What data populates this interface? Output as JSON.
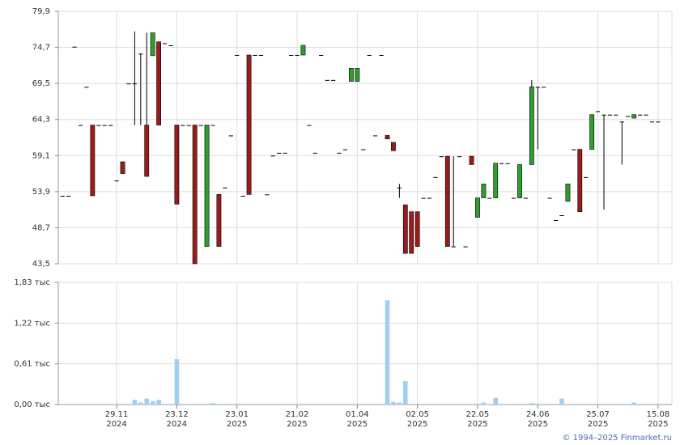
{
  "chart_data": [
    {
      "type": "candlestick",
      "up_color": "#2e9e2e",
      "down_color": "#9b1b1b",
      "flat_color": "#000000",
      "xlim": [
        -0.7,
        101.3
      ],
      "xticks": [
        {
          "value": 9,
          "label": "29.11\n2024"
        },
        {
          "value": 19,
          "label": "23.12\n2024"
        },
        {
          "value": 29,
          "label": "23.01\n2025"
        },
        {
          "value": 39,
          "label": "21.02\n2025"
        },
        {
          "value": 49,
          "label": "01.04\n2025"
        },
        {
          "value": 59,
          "label": "02.05\n2025"
        },
        {
          "value": 69,
          "label": "22.05\n2025"
        },
        {
          "value": 79,
          "label": "24.06\n2025"
        },
        {
          "value": 89,
          "label": "25.07\n2025"
        },
        {
          "value": 99,
          "label": "15.08\n2025"
        }
      ],
      "ylim": [
        43.5,
        79.9
      ],
      "yticks": [
        {
          "value": 43.5,
          "label": "43,5"
        },
        {
          "value": 48.7,
          "label": "48,7"
        },
        {
          "value": 53.9,
          "label": "53,9"
        },
        {
          "value": 59.1,
          "label": "59,1"
        },
        {
          "value": 64.3,
          "label": "64,3"
        },
        {
          "value": 69.5,
          "label": "69,5"
        },
        {
          "value": 74.7,
          "label": "74,7"
        },
        {
          "value": 79.9,
          "label": "79,9"
        }
      ],
      "grid": true,
      "candles": [
        [
          53.3,
          53.3,
          53.3,
          53.3
        ],
        [
          53.3,
          53.3,
          53.3,
          53.3
        ],
        [
          74.8,
          74.8,
          74.8,
          74.8
        ],
        [
          63.5,
          63.5,
          63.5,
          63.5
        ],
        [
          69.0,
          69.0,
          69.0,
          69.0
        ],
        [
          63.5,
          63.5,
          53.3,
          53.3
        ],
        [
          63.5,
          63.5,
          63.5,
          63.5
        ],
        [
          63.5,
          63.5,
          63.5,
          63.5
        ],
        [
          63.5,
          63.5,
          63.5,
          63.5
        ],
        [
          55.5,
          55.5,
          55.5,
          55.5
        ],
        [
          58.2,
          58.2,
          56.5,
          56.5
        ],
        [
          69.5,
          69.5,
          69.5,
          69.5
        ],
        [
          69.5,
          77.0,
          63.5,
          69.5
        ],
        [
          73.8,
          73.8,
          63.5,
          73.8
        ],
        [
          63.5,
          76.8,
          56.1,
          56.1
        ],
        [
          73.5,
          76.8,
          73.5,
          76.8
        ],
        [
          75.5,
          75.5,
          63.5,
          63.5
        ],
        [
          75.3,
          75.3,
          75.3,
          75.3
        ],
        [
          75.0,
          75.0,
          75.0,
          75.0
        ],
        [
          63.5,
          63.5,
          52.1,
          52.1
        ],
        [
          63.5,
          63.5,
          63.5,
          63.5
        ],
        [
          63.5,
          63.5,
          63.5,
          63.5
        ],
        [
          63.5,
          63.5,
          43.5,
          43.5
        ],
        [
          63.5,
          63.5,
          63.5,
          63.5
        ],
        [
          46.0,
          63.5,
          46.0,
          63.5
        ],
        [
          63.5,
          63.5,
          63.5,
          63.5
        ],
        [
          53.5,
          53.5,
          46.0,
          46.0
        ],
        [
          54.5,
          54.5,
          54.5,
          54.5
        ],
        [
          62.0,
          62.0,
          62.0,
          62.0
        ],
        [
          73.6,
          73.6,
          73.6,
          73.6
        ],
        [
          53.3,
          53.3,
          53.3,
          53.3
        ],
        [
          73.6,
          73.6,
          53.5,
          53.5
        ],
        [
          73.6,
          73.6,
          73.6,
          73.6
        ],
        [
          73.6,
          73.6,
          73.6,
          73.6
        ],
        [
          53.5,
          53.5,
          53.5,
          53.5
        ],
        [
          59.1,
          59.1,
          59.1,
          59.1
        ],
        [
          59.5,
          59.5,
          59.5,
          59.5
        ],
        [
          59.5,
          59.5,
          59.5,
          59.5
        ],
        [
          73.6,
          73.6,
          73.6,
          73.6
        ],
        [
          73.6,
          73.6,
          73.6,
          73.6
        ],
        [
          73.6,
          75.0,
          73.6,
          75.0
        ],
        [
          63.5,
          63.5,
          63.5,
          63.5
        ],
        [
          59.5,
          59.5,
          59.5,
          59.5
        ],
        [
          73.6,
          73.6,
          73.6,
          73.6
        ],
        [
          70.0,
          70.0,
          70.0,
          70.0
        ],
        [
          70.0,
          70.0,
          70.0,
          70.0
        ],
        [
          59.5,
          59.5,
          59.5,
          59.5
        ],
        [
          60.0,
          60.0,
          60.0,
          60.0
        ],
        [
          69.8,
          71.7,
          69.8,
          71.7
        ],
        [
          69.8,
          71.7,
          69.8,
          71.7
        ],
        [
          60.0,
          60.0,
          60.0,
          60.0
        ],
        [
          73.6,
          73.6,
          73.6,
          73.6
        ],
        [
          62.0,
          62.0,
          62.0,
          62.0
        ],
        [
          73.6,
          73.6,
          73.6,
          73.6
        ],
        [
          62.0,
          62.0,
          61.5,
          61.5
        ],
        [
          61.0,
          61.0,
          59.8,
          59.8
        ],
        [
          54.5,
          55.0,
          53.0,
          54.5
        ],
        [
          52.0,
          52.0,
          45.0,
          45.0
        ],
        [
          51.0,
          51.0,
          45.0,
          45.0
        ],
        [
          51.0,
          51.0,
          46.0,
          46.0
        ],
        [
          53.0,
          53.0,
          53.0,
          53.0
        ],
        [
          53.0,
          53.0,
          53.0,
          53.0
        ],
        [
          56.0,
          56.0,
          56.0,
          56.0
        ],
        [
          59.0,
          59.0,
          59.0,
          59.0
        ],
        [
          59.0,
          59.0,
          46.0,
          46.0
        ],
        [
          46.0,
          59.0,
          46.0,
          46.0
        ],
        [
          59.0,
          59.0,
          59.0,
          59.0
        ],
        [
          46.0,
          46.0,
          46.0,
          46.0
        ],
        [
          59.0,
          59.0,
          57.8,
          57.8
        ],
        [
          50.2,
          53.0,
          50.2,
          53.0
        ],
        [
          53.0,
          55.0,
          53.0,
          55.0
        ],
        [
          53.0,
          53.0,
          53.0,
          53.0
        ],
        [
          53.0,
          58.0,
          53.0,
          58.0
        ],
        [
          58.0,
          58.0,
          58.0,
          58.0
        ],
        [
          58.0,
          58.0,
          58.0,
          58.0
        ],
        [
          53.0,
          53.0,
          53.0,
          53.0
        ],
        [
          53.0,
          57.8,
          53.0,
          57.8
        ],
        [
          53.0,
          53.0,
          53.0,
          53.0
        ],
        [
          57.8,
          70.0,
          57.8,
          69.0
        ],
        [
          69.0,
          69.0,
          60.0,
          69.0
        ],
        [
          69.0,
          69.0,
          69.0,
          69.0
        ],
        [
          53.0,
          53.0,
          53.0,
          53.0
        ],
        [
          49.8,
          49.8,
          49.8,
          49.8
        ],
        [
          50.5,
          50.5,
          50.5,
          50.5
        ],
        [
          52.5,
          55.0,
          52.5,
          55.0
        ],
        [
          60.0,
          60.0,
          60.0,
          60.0
        ],
        [
          60.0,
          60.0,
          51.0,
          51.0
        ],
        [
          56.0,
          56.0,
          56.0,
          56.0
        ],
        [
          60.0,
          65.0,
          60.0,
          65.0
        ],
        [
          65.5,
          65.5,
          65.5,
          65.5
        ],
        [
          65.0,
          65.0,
          51.3,
          65.0
        ],
        [
          65.0,
          65.0,
          65.0,
          65.0
        ],
        [
          65.0,
          65.0,
          65.0,
          65.0
        ],
        [
          64.0,
          64.0,
          57.8,
          64.0
        ],
        [
          64.8,
          64.8,
          64.8,
          64.8
        ],
        [
          64.5,
          65.0,
          64.5,
          65.0
        ],
        [
          65.0,
          65.0,
          65.0,
          65.0
        ],
        [
          65.0,
          65.0,
          65.0,
          65.0
        ],
        [
          64.0,
          64.0,
          64.0,
          64.0
        ],
        [
          64.0,
          64.0,
          64.0,
          64.0
        ]
      ]
    },
    {
      "type": "bar",
      "color": "#9fd0f2",
      "ylim": [
        0,
        1.83
      ],
      "yticks": [
        {
          "value": 0,
          "label": "0,00 тыс"
        },
        {
          "value": 0.61,
          "label": "0,61 тыс"
        },
        {
          "value": 1.22,
          "label": "1,22 тыс"
        },
        {
          "value": 1.83,
          "label": "1,83 тыс"
        }
      ],
      "values": [
        0.01,
        0.01,
        0.01,
        0.01,
        0.01,
        0.01,
        0.01,
        0.01,
        0.01,
        0.01,
        0.01,
        0.01,
        0.07,
        0.03,
        0.09,
        0.05,
        0.07,
        0.01,
        0.01,
        0.68,
        0.01,
        0.01,
        0.01,
        0.01,
        0.01,
        0.02,
        0.01,
        0.01,
        0.01,
        0.01,
        0.01,
        0.01,
        0.01,
        0.01,
        0.01,
        0.01,
        0.01,
        0.01,
        0.01,
        0.01,
        0.01,
        0.01,
        0.01,
        0.01,
        0.01,
        0.01,
        0.01,
        0.01,
        0.01,
        0.01,
        0.01,
        0.01,
        0.01,
        0.01,
        1.56,
        0.04,
        0.03,
        0.35,
        0.01,
        0.01,
        0.01,
        0.01,
        0.01,
        0.01,
        0.01,
        0.01,
        0.01,
        0.01,
        0.01,
        0.01,
        0.03,
        0.01,
        0.1,
        0.01,
        0.01,
        0.01,
        0.01,
        0.01,
        0.02,
        0.01,
        0.01,
        0.01,
        0.01,
        0.09,
        0.01,
        0.01,
        0.01,
        0.01,
        0.01,
        0.01,
        0.01,
        0.01,
        0.01,
        0.01,
        0.01,
        0.03,
        0.01,
        0.01,
        0.01,
        0.01
      ]
    }
  ],
  "footer": "© 1994–2025 Finmarket.ru"
}
